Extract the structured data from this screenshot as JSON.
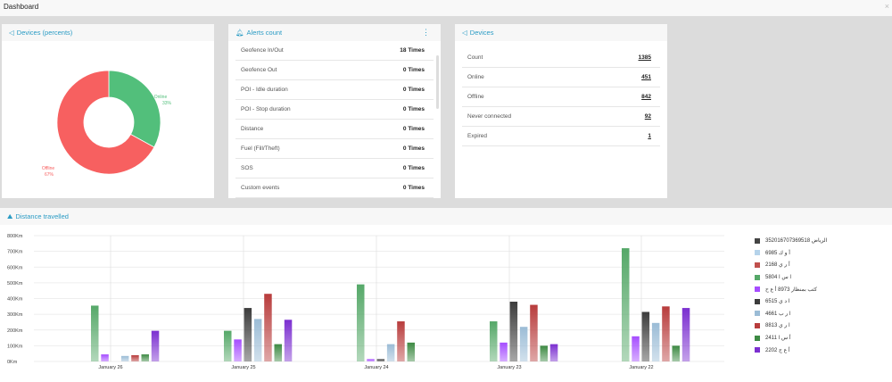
{
  "header": {
    "title": "Dashboard",
    "close": "×"
  },
  "devices_percent": {
    "title": "Devices (percents)",
    "slices": [
      {
        "label": "Online",
        "pct_label": "33%",
        "value": 33,
        "color": "#52bf7b"
      },
      {
        "label": "Offline",
        "pct_label": "67%",
        "value": 67,
        "color": "#f76060"
      }
    ]
  },
  "alerts": {
    "title": "Alerts count",
    "menu": "⋮",
    "rows": [
      {
        "label": "Geofence In/Out",
        "value": "18 Times"
      },
      {
        "label": "Geofence Out",
        "value": "0 Times"
      },
      {
        "label": "POI - Idle duration",
        "value": "0 Times"
      },
      {
        "label": "POI - Stop duration",
        "value": "0 Times"
      },
      {
        "label": "Distance",
        "value": "0 Times"
      },
      {
        "label": "Fuel (Fill/Theft)",
        "value": "0 Times"
      },
      {
        "label": "SOS",
        "value": "0 Times"
      },
      {
        "label": "Custom events",
        "value": "0 Times"
      }
    ]
  },
  "devices": {
    "title": "Devices",
    "rows": [
      {
        "label": "Count",
        "value": "1385"
      },
      {
        "label": "Online",
        "value": "451"
      },
      {
        "label": "Offline",
        "value": "842"
      },
      {
        "label": "Never connected",
        "value": "92"
      },
      {
        "label": "Expired",
        "value": "1"
      }
    ]
  },
  "chart_data": {
    "type": "bar",
    "title": "Distance travelled",
    "categories": [
      "January 26",
      "January 25",
      "January 24",
      "January 23",
      "January 22"
    ],
    "yticks": [
      "0Km",
      "100Km",
      "200Km",
      "300Km",
      "400Km",
      "500Km",
      "600Km",
      "700Km",
      "800Km"
    ],
    "ylim": [
      0,
      800
    ],
    "unit": "Km",
    "grid": true,
    "legend": "right",
    "series": [
      {
        "name": "الرياض 352016707369518",
        "color": "#444444",
        "values": [
          null,
          null,
          null,
          null,
          null
        ]
      },
      {
        "name": "أ و ك 6985",
        "color": "#b5d3ea",
        "values": [
          null,
          null,
          null,
          null,
          null
        ]
      },
      {
        "name": "أ ر ي 2168",
        "color": "#c0504d",
        "values": [
          null,
          null,
          null,
          null,
          null
        ]
      },
      {
        "name": "ا س ا 5804",
        "color": "#55a868",
        "values": [
          355,
          195,
          490,
          255,
          720
        ]
      },
      {
        "name": "كثب بمنظار 8973 أ ع ح",
        "color": "#a64dff",
        "values": [
          45,
          140,
          15,
          120,
          160
        ]
      },
      {
        "name": "ا د ي 6515",
        "color": "#3c3c3c",
        "values": [
          null,
          340,
          15,
          380,
          315
        ]
      },
      {
        "name": "ا ر ب 4661",
        "color": "#9bbcd6",
        "values": [
          35,
          270,
          110,
          220,
          245
        ]
      },
      {
        "name": "ا ر ي 8813",
        "color": "#b83c3c",
        "values": [
          40,
          430,
          255,
          360,
          350
        ]
      },
      {
        "name": "أ س ا 2411",
        "color": "#3d8a43",
        "values": [
          45,
          110,
          120,
          100,
          100
        ]
      },
      {
        "name": "أ ع ج 2202",
        "color": "#7b2fd0",
        "values": [
          195,
          265,
          null,
          110,
          340
        ]
      }
    ]
  }
}
